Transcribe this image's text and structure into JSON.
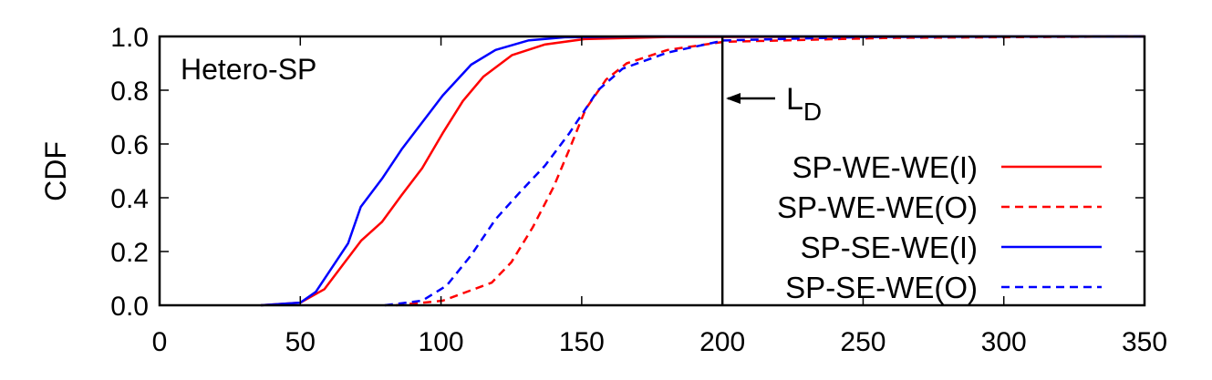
{
  "chart_data": {
    "type": "line",
    "title": "",
    "annotation": "Hetero-SP",
    "xlabel": "",
    "ylabel": "CDF",
    "xlim": [
      0,
      350
    ],
    "ylim": [
      0,
      1
    ],
    "xticks": [
      "0",
      "50",
      "100",
      "150",
      "200",
      "250",
      "300",
      "350"
    ],
    "yticks": [
      "0.0",
      "0.2",
      "0.4",
      "0.6",
      "0.8",
      "1.0"
    ],
    "grid": false,
    "legend_placement": "right",
    "vline": {
      "x": 200,
      "label_main": "L",
      "label_sub": "D"
    },
    "series": [
      {
        "name": "SP-WE-WE(I)",
        "color": "#ff0000",
        "dash": false,
        "x": [
          36,
          50,
          58.6,
          71.6,
          79,
          86,
          93.3,
          100.6,
          107.8,
          115,
          125.2,
          136.8,
          151,
          180,
          350
        ],
        "y": [
          0,
          0.01,
          0.06,
          0.24,
          0.31,
          0.41,
          0.51,
          0.64,
          0.76,
          0.85,
          0.93,
          0.97,
          0.99,
          0.998,
          1.0
        ]
      },
      {
        "name": "SP-WE-WE(O)",
        "color": "#ff0000",
        "dash": true,
        "x": [
          84,
          100.6,
          118,
          125,
          132.6,
          140,
          145.6,
          151.4,
          158.7,
          166,
          180.5,
          200.5,
          260,
          350
        ],
        "y": [
          0,
          0.017,
          0.084,
          0.16,
          0.29,
          0.44,
          0.58,
          0.73,
          0.84,
          0.9,
          0.95,
          0.98,
          0.995,
          1.0
        ]
      },
      {
        "name": "SP-SE-WE(I)",
        "color": "#0000ff",
        "dash": false,
        "x": [
          36,
          50,
          55.5,
          67,
          71.5,
          79,
          86,
          93.3,
          100.6,
          110.7,
          119.4,
          131,
          144,
          170,
          350
        ],
        "y": [
          0,
          0.01,
          0.05,
          0.23,
          0.366,
          0.47,
          0.58,
          0.68,
          0.78,
          0.895,
          0.95,
          0.985,
          0.997,
          1.0,
          1.0
        ]
      },
      {
        "name": "SP-SE-WE(O)",
        "color": "#0000ff",
        "dash": true,
        "x": [
          80,
          93.3,
          102,
          110.7,
          119.4,
          128,
          137,
          145.6,
          155.8,
          164.5,
          180.5,
          200.5,
          250,
          350
        ],
        "y": [
          0,
          0.017,
          0.073,
          0.186,
          0.32,
          0.42,
          0.52,
          0.64,
          0.8,
          0.88,
          0.94,
          0.985,
          0.998,
          1.0
        ]
      }
    ]
  }
}
